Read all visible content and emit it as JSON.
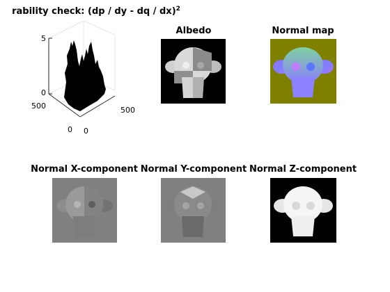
{
  "figure": {
    "surface_plot": {
      "title": "rability check: (dp / dy - dq / dx)",
      "title_exponent": "2",
      "z_ticks": [
        "5",
        "0"
      ],
      "y_ticks": [
        "500",
        "0"
      ],
      "x_ticks": [
        "500",
        "0"
      ],
      "surface_color": "#000000"
    },
    "panels": [
      {
        "id": "albedo",
        "title": "Albedo",
        "background": "#000000"
      },
      {
        "id": "normal-map",
        "title": "Normal map",
        "background": "#808000"
      },
      {
        "id": "normal-x",
        "title": "Normal X-component",
        "background": "#808080"
      },
      {
        "id": "normal-y",
        "title": "Normal Y-component",
        "background": "#808080"
      },
      {
        "id": "normal-z",
        "title": "Normal Z-component",
        "background": "#000000"
      }
    ]
  }
}
